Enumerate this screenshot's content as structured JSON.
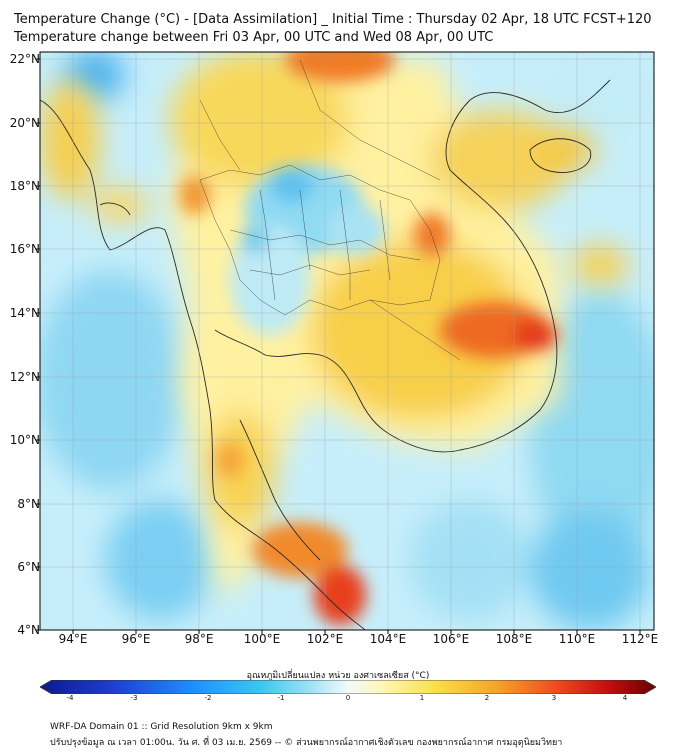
{
  "title": {
    "line1": "Temperature Change (°C) - [Data Assimilation] _ Initial Time : Thursday 02 Apr, 18 UTC FCST+120",
    "line2": "Temperature change between Fri 03 Apr, 00 UTC and Wed 08 Apr, 00 UTC"
  },
  "map": {
    "lat_ticks": [
      "22°N",
      "20°N",
      "18°N",
      "16°N",
      "14°N",
      "12°N",
      "10°N",
      "8°N",
      "6°N",
      "4°N"
    ],
    "lon_ticks": [
      "94°E",
      "96°E",
      "98°E",
      "100°E",
      "102°E",
      "104°E",
      "106°E",
      "108°E",
      "110°E",
      "112°E"
    ],
    "lat_range": [
      4,
      22.2
    ],
    "lon_range": [
      93,
      112.5
    ]
  },
  "colorbar": {
    "title": "อุณหภูมิเปลี่ยนแปลง หน่วย องศาเซลเซียส (°C)",
    "ticks": [
      "-4",
      "-3",
      "-2",
      "-1",
      "0",
      "1",
      "2",
      "3",
      "4"
    ],
    "range": [
      -4,
      4
    ]
  },
  "footer": {
    "line1": "WRF-DA Domain 01 :: Grid Resolution 9km x 9km",
    "line2": "ปรับปรุงข้อมูล ณ เวลา 01:00น. วัน ศ. ที่ 03 เม.ย. 2569 -- © ส่วนพยากรณ์อากาศเชิงตัวเลข กองพยากรณ์อากาศ กรมอุตุนิยมวิทยา"
  },
  "colors": {
    "cold_deep": "#0b1a8c",
    "cold": "#1f8fff",
    "cool": "#7fd8f5",
    "neutral": "#f2fbfb",
    "warm_light": "#fff3a0",
    "warm": "#f7c948",
    "hot": "#f08a24",
    "very_hot": "#e22020",
    "extreme": "#7a0000",
    "coast_line": "#2a2a2a"
  }
}
